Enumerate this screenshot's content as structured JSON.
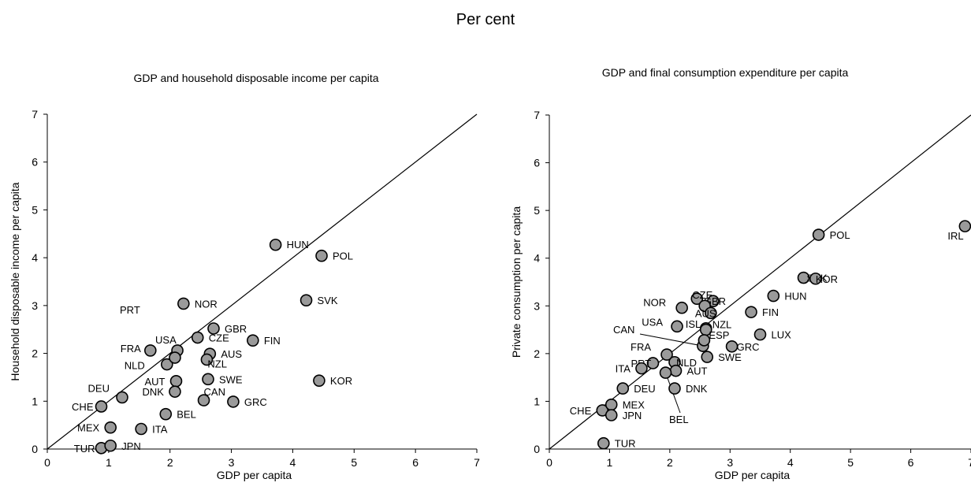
{
  "page_title": "Per cent",
  "chart_data": [
    {
      "type": "scatter",
      "title": "GDP and household disposable income per capita",
      "xlabel": "GDP per capita",
      "ylabel": "Household disposable income per capita",
      "xlim": [
        0,
        7
      ],
      "ylim": [
        0,
        7
      ],
      "xticks": [
        "0",
        "1",
        "2",
        "3",
        "4",
        "5",
        "6",
        "7"
      ],
      "yticks": [
        "0",
        "1",
        "2",
        "3",
        "4",
        "5",
        "6",
        "7"
      ],
      "diagonal": true,
      "grid": false,
      "points": [
        {
          "label": "HUN",
          "x": 3.72,
          "y": 4.27
        },
        {
          "label": "POL",
          "x": 4.47,
          "y": 4.04
        },
        {
          "label": "SVK",
          "x": 4.22,
          "y": 3.11
        },
        {
          "label": "KOR",
          "x": 4.43,
          "y": 1.43
        },
        {
          "label": "NOR",
          "x": 2.22,
          "y": 3.04
        },
        {
          "label": "PRT",
          "x": null,
          "y": null
        },
        {
          "label": "GBR",
          "x": 2.71,
          "y": 2.52
        },
        {
          "label": "FIN",
          "x": 3.35,
          "y": 2.27
        },
        {
          "label": "USA",
          "x": 2.12,
          "y": 2.06
        },
        {
          "label": "CZE",
          "x": 2.45,
          "y": 2.33
        },
        {
          "label": "AUS",
          "x": 2.65,
          "y": 1.99
        },
        {
          "label": "NZL",
          "x": 2.6,
          "y": 1.87
        },
        {
          "label": "FRA",
          "x": 1.68,
          "y": 2.06
        },
        {
          "label": "NLD",
          "x": 1.95,
          "y": 1.77
        },
        {
          "label": "",
          "x": 2.08,
          "y": 1.91
        },
        {
          "label": "AUT",
          "x": 2.1,
          "y": 1.42
        },
        {
          "label": "SWE",
          "x": 2.62,
          "y": 1.46
        },
        {
          "label": "DEU",
          "x": 1.22,
          "y": 1.08
        },
        {
          "label": "DNK",
          "x": 2.08,
          "y": 1.2
        },
        {
          "label": "CAN",
          "x": 2.55,
          "y": 1.02
        },
        {
          "label": "GRC",
          "x": 3.03,
          "y": 0.99
        },
        {
          "label": "CHE",
          "x": 0.88,
          "y": 0.89
        },
        {
          "label": "BEL",
          "x": 1.93,
          "y": 0.73
        },
        {
          "label": "MEX",
          "x": 1.03,
          "y": 0.45
        },
        {
          "label": "ITA",
          "x": 1.53,
          "y": 0.42
        },
        {
          "label": "TUR",
          "x": 0.88,
          "y": 0.02
        },
        {
          "label": "JPN",
          "x": 1.03,
          "y": 0.07
        }
      ]
    },
    {
      "type": "scatter",
      "title": "GDP and final consumption expenditure per capita",
      "xlabel": "GDP per capita",
      "ylabel": "Private consumption per capita",
      "xlim": [
        0,
        7
      ],
      "ylim": [
        0,
        7
      ],
      "xticks": [
        "0",
        "1",
        "2",
        "3",
        "4",
        "5",
        "6",
        "7"
      ],
      "yticks": [
        "0",
        "1",
        "2",
        "3",
        "4",
        "5",
        "6",
        "7"
      ],
      "diagonal": true,
      "grid": false,
      "points": [
        {
          "label": "POL",
          "x": 4.47,
          "y": 4.49
        },
        {
          "label": "IRL",
          "x": 6.9,
          "y": 4.67
        },
        {
          "label": "SVK",
          "x": 4.22,
          "y": 3.59
        },
        {
          "label": "KOR",
          "x": 4.42,
          "y": 3.57
        },
        {
          "label": "HUN",
          "x": 3.72,
          "y": 3.21
        },
        {
          "label": "FIN",
          "x": 3.35,
          "y": 2.87
        },
        {
          "label": "LUX",
          "x": 3.5,
          "y": 2.4
        },
        {
          "label": "GRC",
          "x": 3.03,
          "y": 2.15
        },
        {
          "label": "NOR",
          "x": 2.2,
          "y": 2.96
        },
        {
          "label": "CZE",
          "x": 2.45,
          "y": 3.15
        },
        {
          "label": "GBR",
          "x": 2.72,
          "y": 3.1
        },
        {
          "label": "",
          "x": 2.58,
          "y": 3.0
        },
        {
          "label": "AUS",
          "x": 2.68,
          "y": 2.85
        },
        {
          "label": "ISL",
          "x": 2.6,
          "y": 2.53
        },
        {
          "label": "NZL",
          "x": 2.6,
          "y": 2.5
        },
        {
          "label": "USA",
          "x": 2.12,
          "y": 2.57
        },
        {
          "label": "CAN",
          "x": 2.55,
          "y": 2.16
        },
        {
          "label": "ESP",
          "x": 2.57,
          "y": 2.28
        },
        {
          "label": "SWE",
          "x": 2.62,
          "y": 1.93
        },
        {
          "label": "FRA",
          "x": 1.95,
          "y": 1.98
        },
        {
          "label": "NLD",
          "x": 2.08,
          "y": 1.82
        },
        {
          "label": "PRT",
          "x": 1.72,
          "y": 1.8
        },
        {
          "label": "ITA",
          "x": 1.53,
          "y": 1.69
        },
        {
          "label": "AUT",
          "x": 2.1,
          "y": 1.64
        },
        {
          "label": "BEL",
          "x": 1.93,
          "y": 1.6
        },
        {
          "label": "DNK",
          "x": 2.08,
          "y": 1.27
        },
        {
          "label": "DEU",
          "x": 1.22,
          "y": 1.27
        },
        {
          "label": "CHE",
          "x": 0.88,
          "y": 0.81
        },
        {
          "label": "MEX",
          "x": 1.03,
          "y": 0.93
        },
        {
          "label": "JPN",
          "x": 1.03,
          "y": 0.71
        },
        {
          "label": "TUR",
          "x": 0.9,
          "y": 0.12
        }
      ]
    }
  ]
}
